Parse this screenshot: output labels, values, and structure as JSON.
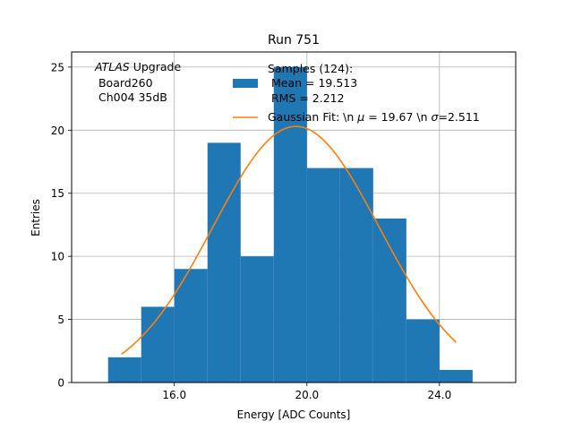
{
  "chart_data": {
    "type": "bar",
    "title": "Run 751",
    "xlabel": "Energy [ADC Counts]",
    "ylabel": "Entries",
    "xlim": [
      12.9,
      26.3
    ],
    "ylim": [
      0,
      26.2
    ],
    "grid": true,
    "x_ticks": [
      16,
      20,
      24
    ],
    "x_tick_labels": [
      "16.0",
      "20.0",
      "24.0"
    ],
    "y_ticks": [
      0,
      5,
      10,
      15,
      20,
      25
    ],
    "y_tick_labels": [
      "0",
      "5",
      "10",
      "15",
      "20",
      "25"
    ],
    "histogram": {
      "name": "Samples (124):\n Mean = 19.513\n RMS = 2.212",
      "color": "#1f77b4",
      "bin_edges": [
        14,
        15,
        16,
        17,
        18,
        19,
        20,
        21,
        22,
        23,
        24,
        25
      ],
      "counts": [
        2,
        6,
        9,
        19,
        10,
        25,
        17,
        17,
        13,
        5,
        1
      ]
    },
    "fit": {
      "name": "Gaussian Fit: \\n $\\mu$ = 19.67 \\n $\\sigma$=2.511",
      "color": "#ff7f0e",
      "mu": 19.67,
      "sigma": 2.511,
      "amplitude": 20.3,
      "x_range": [
        14.4,
        24.5
      ]
    },
    "legend": {
      "placement": "upper-center",
      "hist_lines": [
        "Samples (124):",
        " Mean = 19.513",
        " RMS = 2.212"
      ],
      "fit_label_prefix": "Gaussian Fit: \\n ",
      "fit_mu_symbol": "μ",
      "fit_mu_text": " = 19.67 \\n ",
      "fit_sigma_symbol": "σ",
      "fit_sigma_text": "=2.511"
    },
    "annotation": {
      "italic_word": "ATLAS",
      "word_after": " Upgrade",
      "line2": " Board260",
      "line3": " Ch004 35dB"
    }
  }
}
